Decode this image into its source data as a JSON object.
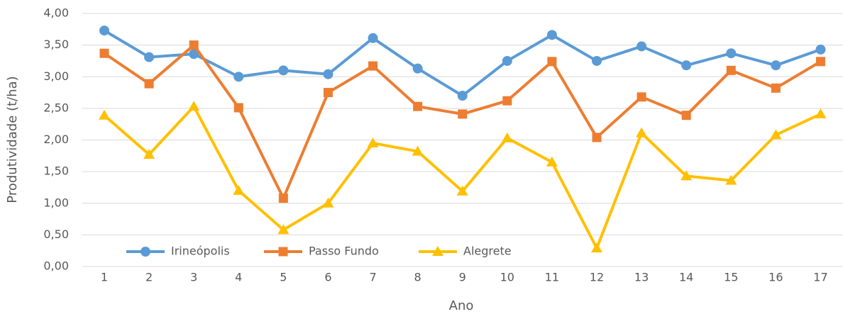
{
  "chart_data": {
    "type": "line",
    "xlabel": "Ano",
    "ylabel": "Produtividade (t/ha)",
    "categories": [
      "1",
      "2",
      "3",
      "4",
      "5",
      "6",
      "7",
      "8",
      "9",
      "10",
      "11",
      "12",
      "13",
      "14",
      "15",
      "16",
      "17"
    ],
    "series": [
      {
        "name": "Irineópolis",
        "color": "#5b9bd5",
        "marker": "circle",
        "values": [
          3.73,
          3.31,
          3.36,
          3.0,
          3.1,
          3.04,
          3.61,
          3.13,
          2.7,
          3.25,
          3.66,
          3.25,
          3.48,
          3.18,
          3.37,
          3.18,
          3.43
        ]
      },
      {
        "name": "Passo Fundo",
        "color": "#ed7d31",
        "marker": "square",
        "values": [
          3.37,
          2.89,
          3.5,
          2.51,
          1.08,
          2.75,
          3.17,
          2.53,
          2.41,
          2.62,
          3.24,
          2.04,
          2.68,
          2.39,
          3.1,
          2.82,
          3.24
        ]
      },
      {
        "name": "Alegrete",
        "color": "#ffc000",
        "marker": "triangle",
        "values": [
          2.39,
          1.77,
          2.53,
          1.2,
          0.58,
          1.0,
          1.95,
          1.82,
          1.19,
          2.03,
          1.65,
          0.29,
          2.11,
          1.43,
          1.36,
          2.08,
          2.41
        ]
      }
    ],
    "ylim": [
      0,
      4
    ],
    "yticks": [
      {
        "value": 0,
        "label": "0,00"
      },
      {
        "value": 0.5,
        "label": "0,50"
      },
      {
        "value": 1,
        "label": "1,00"
      },
      {
        "value": 1.5,
        "label": "1,50"
      },
      {
        "value": 2,
        "label": "2,00"
      },
      {
        "value": 2.5,
        "label": "2,50"
      },
      {
        "value": 3,
        "label": "3,00"
      },
      {
        "value": 3.5,
        "label": "3,50"
      },
      {
        "value": 4,
        "label": "4,00"
      }
    ],
    "grid": true,
    "legend": "lower left"
  }
}
